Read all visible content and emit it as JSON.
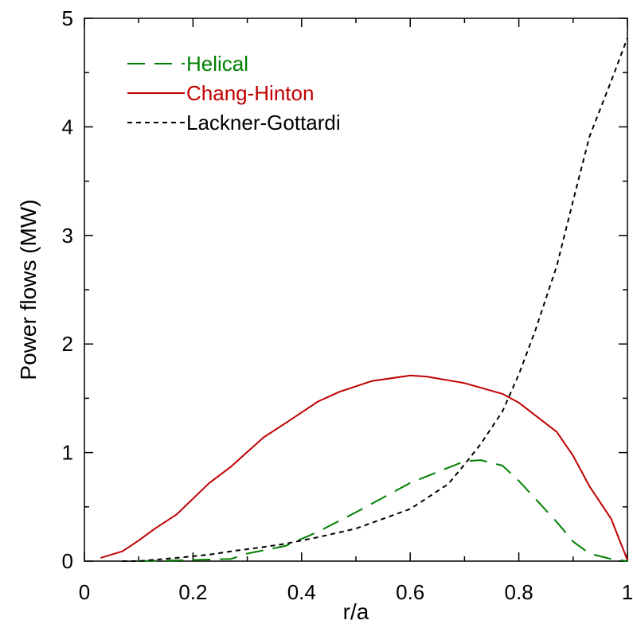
{
  "chart_data": {
    "type": "line",
    "xlabel": "r/a",
    "ylabel": "Power flows (MW)",
    "xlim": [
      0,
      1
    ],
    "ylim": [
      0,
      5
    ],
    "x_ticks": [
      "0",
      "0.2",
      "0.4",
      "0.6",
      "0.8",
      "1"
    ],
    "y_ticks": [
      "0",
      "1",
      "2",
      "3",
      "4",
      "5"
    ],
    "grid": false,
    "legend_position": "top-left",
    "series": [
      {
        "name": "Helical",
        "color": "#008000",
        "dash": "long-dash",
        "x": [
          0.1,
          0.2,
          0.27,
          0.3,
          0.37,
          0.43,
          0.5,
          0.6,
          0.67,
          0.7,
          0.73,
          0.77,
          0.8,
          0.87,
          0.9,
          0.93,
          0.97,
          1.0
        ],
        "y": [
          0.0,
          0.01,
          0.02,
          0.07,
          0.14,
          0.27,
          0.45,
          0.72,
          0.86,
          0.92,
          0.93,
          0.88,
          0.74,
          0.36,
          0.18,
          0.07,
          0.02,
          0.0
        ]
      },
      {
        "name": "Chang-Hinton",
        "color": "#c00000",
        "dash": "solid",
        "x": [
          0.03,
          0.07,
          0.1,
          0.13,
          0.17,
          0.23,
          0.27,
          0.33,
          0.37,
          0.43,
          0.47,
          0.53,
          0.6,
          0.63,
          0.7,
          0.77,
          0.8,
          0.87,
          0.9,
          0.93,
          0.97,
          1.0
        ],
        "y": [
          0.03,
          0.09,
          0.19,
          0.3,
          0.43,
          0.72,
          0.87,
          1.14,
          1.27,
          1.47,
          1.56,
          1.66,
          1.71,
          1.7,
          1.64,
          1.54,
          1.46,
          1.19,
          0.97,
          0.69,
          0.39,
          0.01
        ]
      },
      {
        "name": "Lackner-Gottardi",
        "color": "#000000",
        "dash": "short-dash",
        "x": [
          0.07,
          0.1,
          0.17,
          0.23,
          0.27,
          0.33,
          0.37,
          0.43,
          0.5,
          0.6,
          0.67,
          0.7,
          0.73,
          0.77,
          0.8,
          0.83,
          0.87,
          0.9,
          0.93,
          0.97,
          1.0
        ],
        "y": [
          0.0,
          0.0,
          0.03,
          0.06,
          0.09,
          0.13,
          0.16,
          0.22,
          0.3,
          0.48,
          0.71,
          0.89,
          1.08,
          1.38,
          1.72,
          2.12,
          2.72,
          3.32,
          3.91,
          4.42,
          4.82
        ]
      }
    ]
  }
}
